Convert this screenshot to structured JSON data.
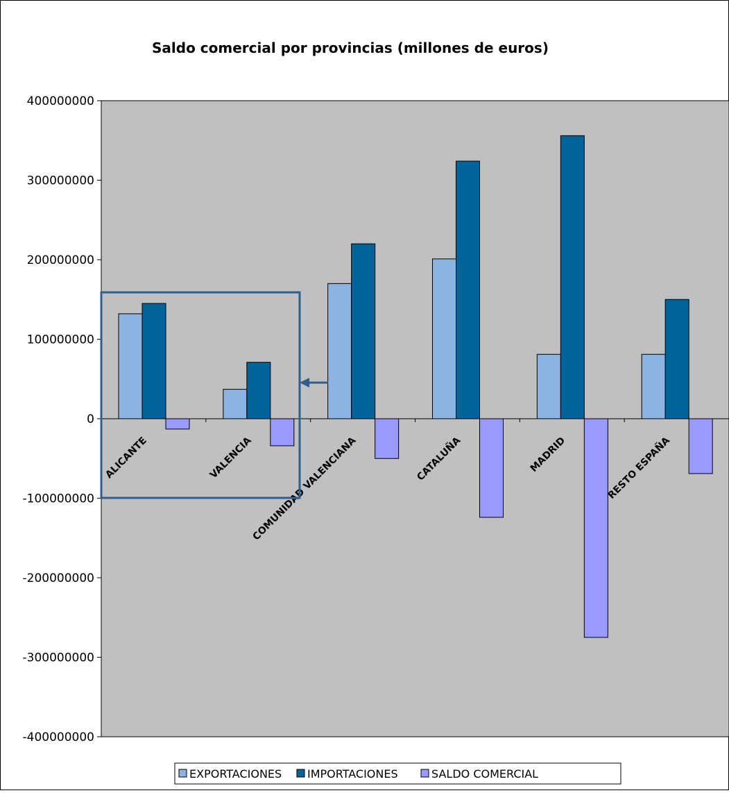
{
  "chart_data": {
    "type": "bar",
    "title": "Saldo comercial por provincias (millones de euros)",
    "xlabel": "",
    "ylabel": "",
    "ylim": [
      -400000000,
      400000000
    ],
    "yticks": [
      400000000,
      300000000,
      200000000,
      100000000,
      0,
      -100000000,
      -200000000,
      -300000000,
      -400000000
    ],
    "ytick_labels": [
      "400000000",
      "300000000",
      "200000000",
      "100000000",
      "0",
      "-100000000",
      "-200000000",
      "-300000000",
      "-400000000"
    ],
    "categories": [
      "ALICANTE",
      "VALENCIA",
      "COMUNIDAD VALENCIANA",
      "CATALUÑA",
      "MADRID",
      "RESTO ESPAÑA"
    ],
    "series": [
      {
        "name": "EXPORTACIONES",
        "color": "#8db3e2",
        "values": [
          132000000,
          37000000,
          170000000,
          201000000,
          81000000,
          81000000
        ]
      },
      {
        "name": "IMPORTACIONES",
        "color": "#00649a",
        "values": [
          145000000,
          71000000,
          220000000,
          324000000,
          356000000,
          150000000
        ]
      },
      {
        "name": "SALDO COMERCIAL",
        "color": "#9999ff",
        "values": [
          -13000000,
          -34000000,
          -50000000,
          -124000000,
          -275000000,
          -69000000
        ]
      }
    ],
    "grid": false,
    "plot_background": "#c0c0c0",
    "legend_position": "bottom",
    "annotations": [
      {
        "type": "rectangle",
        "note": "highlight box around ALICANTE and VALENCIA",
        "color": "#2f5f8a"
      },
      {
        "type": "arrow",
        "note": "arrow pointing left to the highlight box",
        "color": "#2f5f8a"
      }
    ]
  }
}
